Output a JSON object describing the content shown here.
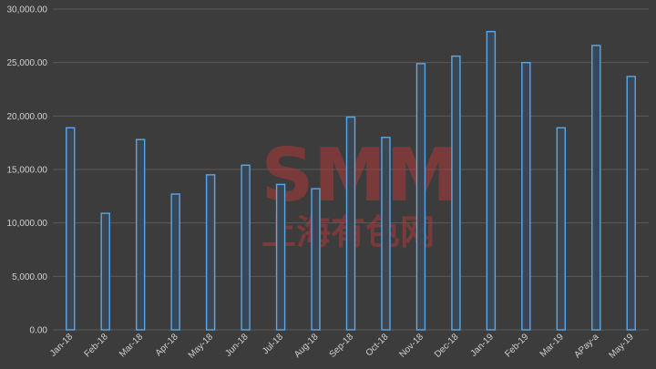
{
  "watermark": {
    "text": "SMM",
    "subtext": "上海有色网"
  },
  "chart_data": {
    "type": "bar",
    "title": "",
    "xlabel": "",
    "ylabel": "",
    "ylim": [
      0,
      30000
    ],
    "yticks": [
      "0.00",
      "5,000.00",
      "10,000.00",
      "15,000.00",
      "20,000.00",
      "25,000.00",
      "30,000.00"
    ],
    "grid": true,
    "legend": "none",
    "bar_color": "#5aa7e6",
    "categories": [
      "Jan-18",
      "Feb-18",
      "Mar-18",
      "Apr-18",
      "May-18",
      "Jun-18",
      "Jul-18",
      "Aug-18",
      "Sep-18",
      "Oct-18",
      "Nov-18",
      "Dec-18",
      "Jan-19",
      "Feb-19",
      "Mar-19",
      "APay-a",
      "May-19"
    ],
    "values": [
      18900,
      10900,
      17800,
      12700,
      14500,
      15400,
      13600,
      13200,
      19900,
      18000,
      24900,
      25600,
      27900,
      25000,
      18900,
      26600,
      23700
    ]
  }
}
